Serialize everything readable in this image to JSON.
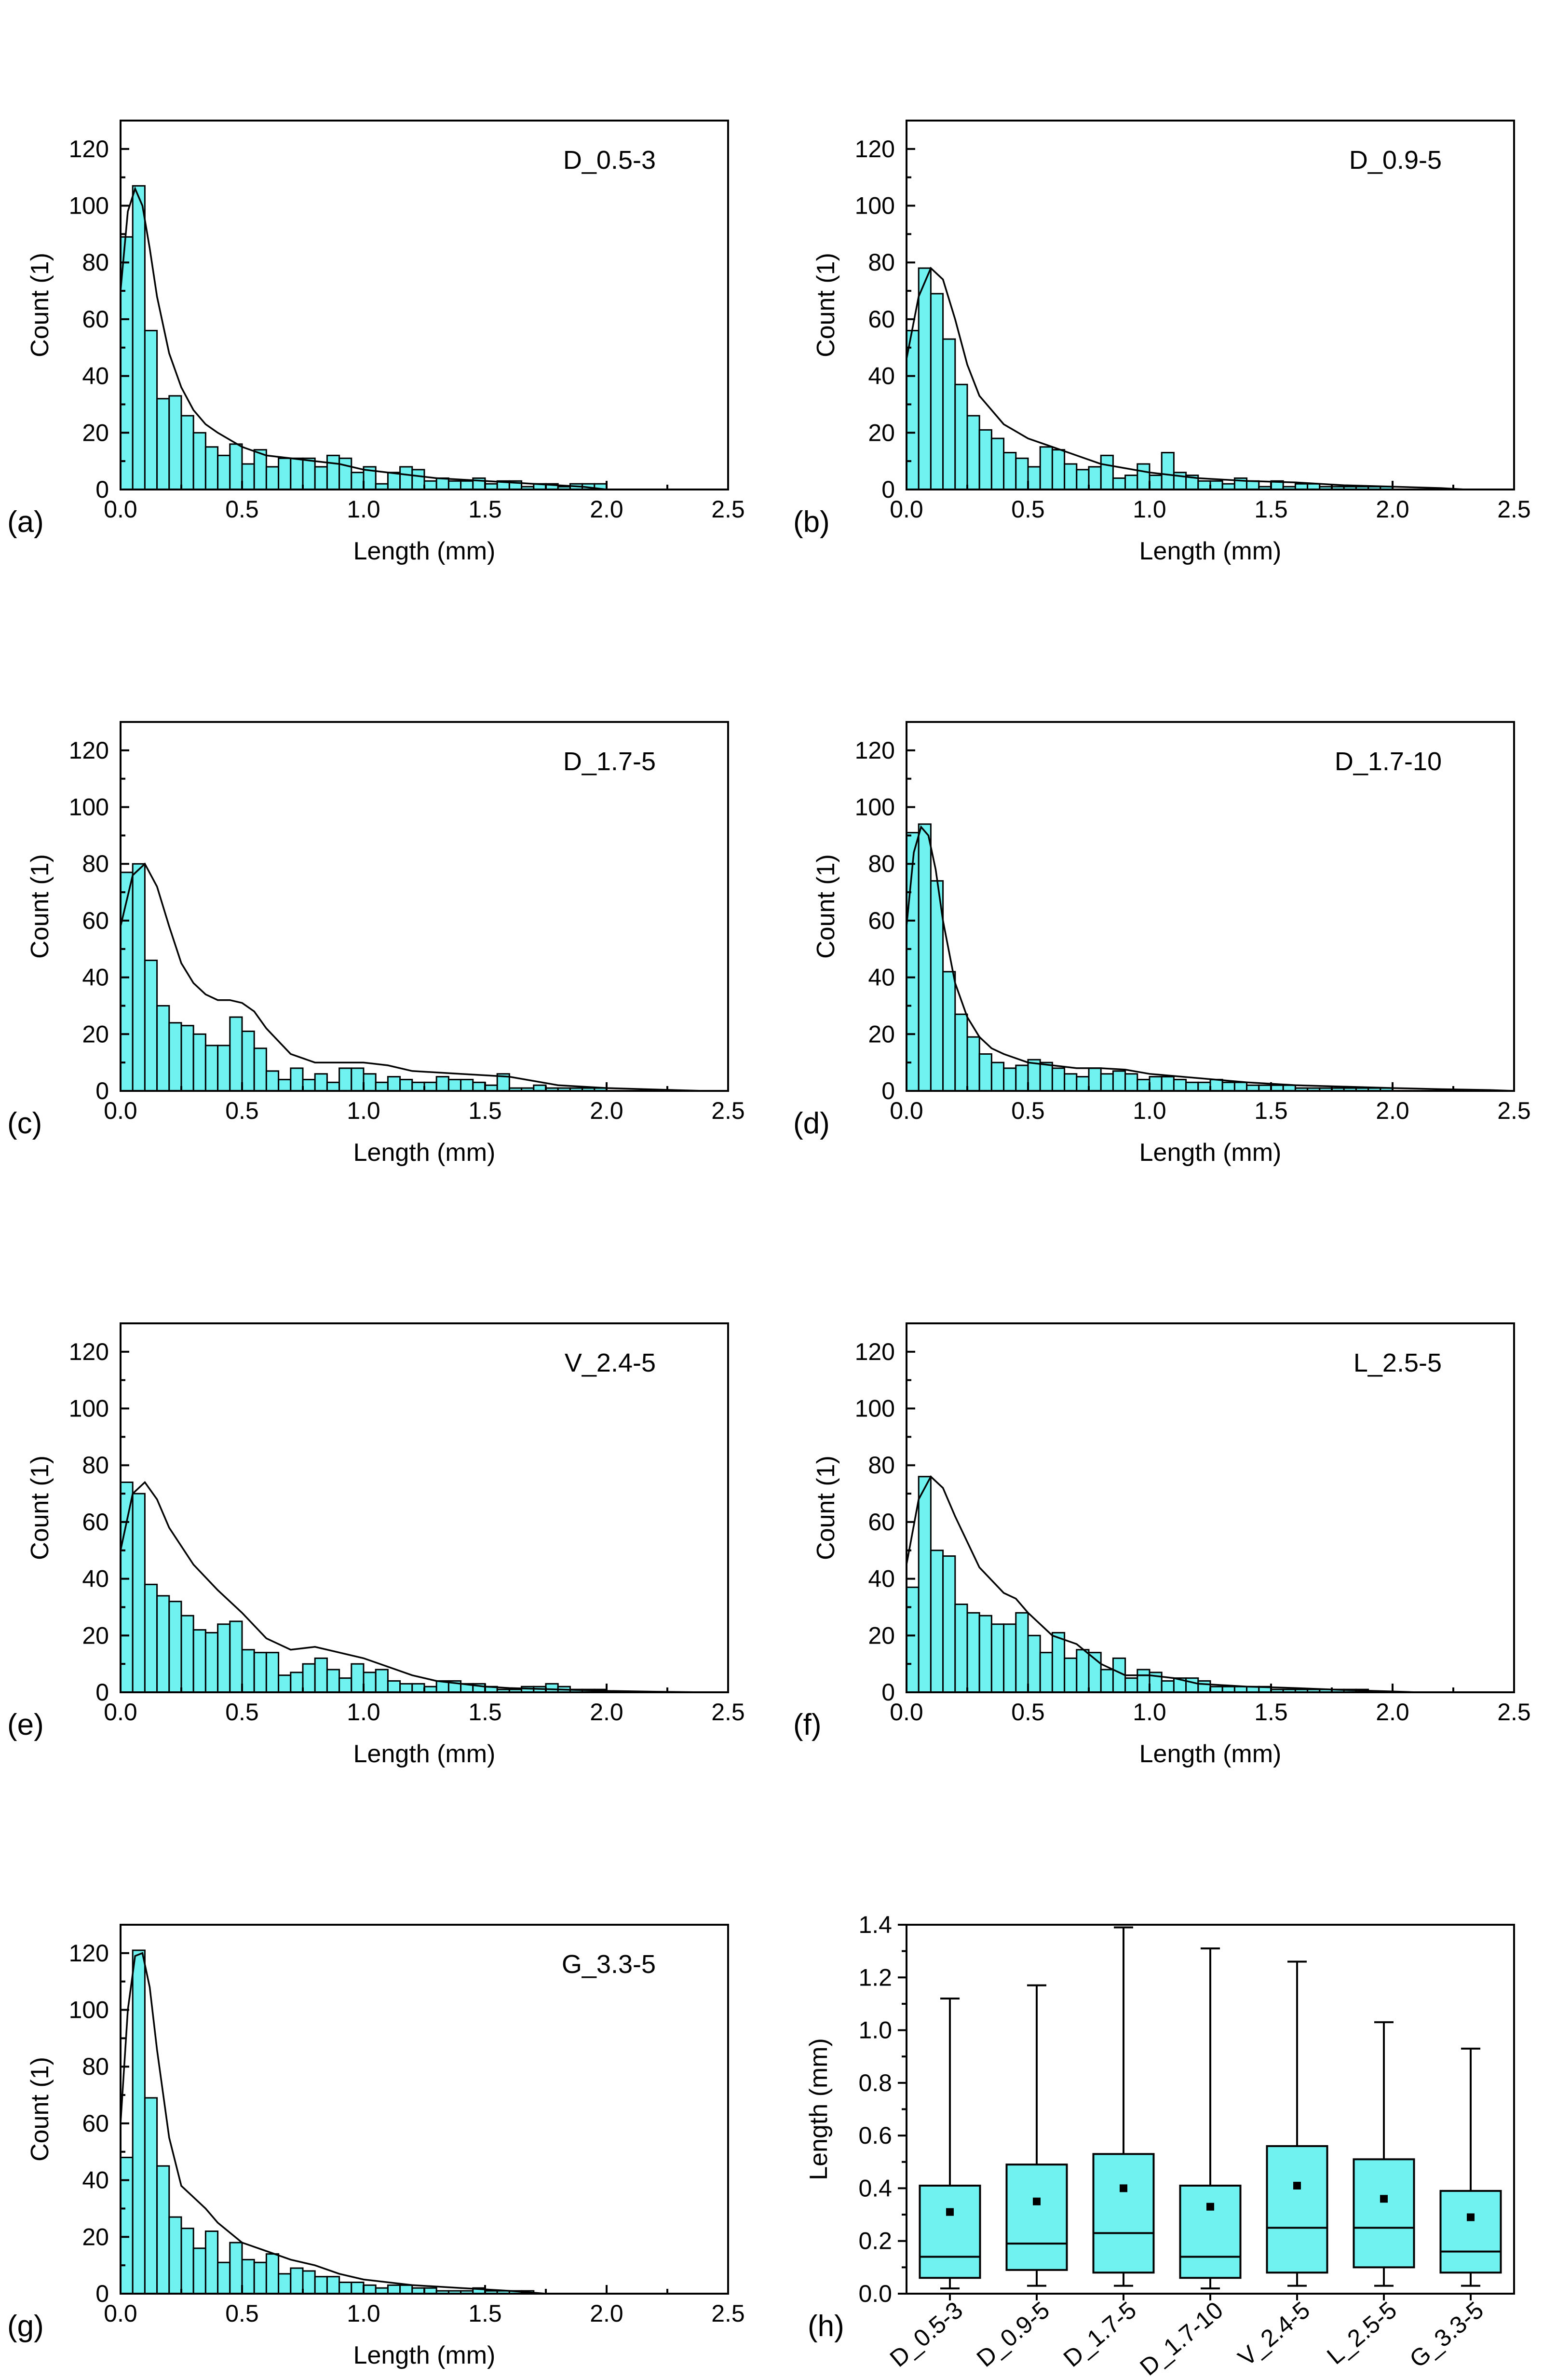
{
  "chart_data": [
    {
      "type": "histogram",
      "panel_label": "(a)",
      "series_label": "D_0.5-3",
      "xlabel": "Length (mm)",
      "ylabel": "Count (1)",
      "xlim": [
        0,
        2.5
      ],
      "ylim": [
        0,
        130
      ],
      "xticks": [
        "0.0",
        "0.5",
        "1.0",
        "1.5",
        "2.0",
        "2.5"
      ],
      "yticks": [
        "0",
        "20",
        "40",
        "60",
        "80",
        "100",
        "120"
      ],
      "bin_width": 0.05,
      "values": [
        89,
        107,
        56,
        32,
        33,
        26,
        20,
        15,
        12,
        16,
        9,
        14,
        8,
        11,
        11,
        11,
        8,
        12,
        11,
        6,
        8,
        2,
        6,
        8,
        7,
        3,
        4,
        3,
        3,
        4,
        2,
        3,
        3,
        1,
        2,
        2,
        1,
        2,
        2,
        2
      ],
      "curve": {
        "x": [
          0,
          0.03,
          0.06,
          0.09,
          0.12,
          0.15,
          0.2,
          0.25,
          0.3,
          0.35,
          0.4,
          0.5,
          0.6,
          0.7,
          0.8,
          0.9,
          1.0,
          1.1,
          1.2,
          1.3,
          1.4,
          1.5,
          1.6,
          1.7,
          1.8,
          1.9,
          1.95,
          2.0
        ],
        "y": [
          70,
          98,
          106,
          100,
          85,
          68,
          48,
          36,
          28,
          23,
          20,
          15,
          12,
          11,
          10,
          9,
          7,
          6,
          5,
          4,
          3.5,
          3,
          2.5,
          2,
          1.5,
          1,
          0.5,
          0
        ]
      }
    },
    {
      "type": "histogram",
      "panel_label": "(b)",
      "series_label": "D_0.9-5",
      "xlabel": "Length (mm)",
      "ylabel": "Count (1)",
      "xlim": [
        0,
        2.5
      ],
      "ylim": [
        0,
        130
      ],
      "xticks": [
        "0.0",
        "0.5",
        "1.0",
        "1.5",
        "2.0",
        "2.5"
      ],
      "yticks": [
        "0",
        "20",
        "40",
        "60",
        "80",
        "100",
        "120"
      ],
      "bin_width": 0.05,
      "values": [
        56,
        78,
        69,
        53,
        37,
        26,
        21,
        18,
        13,
        11,
        8,
        15,
        14,
        9,
        7,
        8,
        12,
        4,
        5,
        9,
        5,
        13,
        6,
        5,
        3,
        3,
        2,
        4,
        3,
        1,
        3,
        1,
        2,
        2,
        1,
        1,
        1,
        1,
        1,
        1
      ],
      "curve": {
        "x": [
          0,
          0.05,
          0.1,
          0.15,
          0.2,
          0.25,
          0.3,
          0.4,
          0.5,
          0.6,
          0.7,
          0.8,
          0.9,
          1.0,
          1.1,
          1.2,
          1.4,
          1.6,
          1.8,
          2.0,
          2.2,
          2.3
        ],
        "y": [
          46,
          68,
          78,
          74,
          60,
          44,
          33,
          23,
          18,
          15,
          12,
          9,
          7.5,
          6,
          5,
          4,
          3,
          2.5,
          1.5,
          1,
          0.5,
          0
        ]
      }
    },
    {
      "type": "histogram",
      "panel_label": "(c)",
      "series_label": "D_1.7-5",
      "xlabel": "Length (mm)",
      "ylabel": "Count (1)",
      "xlim": [
        0,
        2.5
      ],
      "ylim": [
        0,
        130
      ],
      "xticks": [
        "0.0",
        "0.5",
        "1.0",
        "1.5",
        "2.0",
        "2.5"
      ],
      "yticks": [
        "0",
        "20",
        "40",
        "60",
        "80",
        "100",
        "120"
      ],
      "bin_width": 0.05,
      "values": [
        77,
        80,
        46,
        30,
        24,
        23,
        20,
        16,
        16,
        26,
        21,
        15,
        7,
        4,
        8,
        4,
        6,
        3,
        8,
        8,
        6,
        3,
        5,
        4,
        3,
        3,
        5,
        4,
        4,
        3,
        2,
        6,
        1,
        1,
        2,
        1,
        1,
        1,
        1,
        1
      ],
      "curve": {
        "x": [
          0,
          0.05,
          0.1,
          0.15,
          0.2,
          0.25,
          0.3,
          0.35,
          0.4,
          0.45,
          0.5,
          0.55,
          0.6,
          0.7,
          0.8,
          0.9,
          1.0,
          1.1,
          1.2,
          1.4,
          1.6,
          1.8,
          2.0,
          2.2,
          2.4
        ],
        "y": [
          58,
          76,
          80,
          72,
          58,
          45,
          38,
          34,
          32,
          32,
          31,
          28,
          22,
          13,
          10,
          10,
          10,
          9,
          7,
          6,
          5,
          2,
          1,
          0.5,
          0
        ]
      }
    },
    {
      "type": "histogram",
      "panel_label": "(d)",
      "series_label": "D_1.7-10",
      "xlabel": "Length (mm)",
      "ylabel": "Count (1)",
      "xlim": [
        0,
        2.5
      ],
      "ylim": [
        0,
        130
      ],
      "xticks": [
        "0.0",
        "0.5",
        "1.0",
        "1.5",
        "2.0",
        "2.5"
      ],
      "yticks": [
        "0",
        "20",
        "40",
        "60",
        "80",
        "100",
        "120"
      ],
      "bin_width": 0.05,
      "values": [
        91,
        94,
        74,
        42,
        27,
        19,
        13,
        10,
        8,
        9,
        11,
        10,
        8,
        6,
        5,
        8,
        6,
        7,
        6,
        4,
        5,
        5,
        4,
        3,
        3,
        4,
        3,
        3,
        2,
        2,
        2,
        2,
        1,
        1,
        1,
        1,
        1,
        1,
        1,
        1
      ],
      "curve": {
        "x": [
          0,
          0.03,
          0.06,
          0.09,
          0.12,
          0.15,
          0.2,
          0.25,
          0.3,
          0.35,
          0.4,
          0.5,
          0.6,
          0.7,
          0.8,
          0.9,
          1.0,
          1.2,
          1.4,
          1.6,
          1.8,
          2.0,
          2.2,
          2.4,
          2.5
        ],
        "y": [
          58,
          84,
          93,
          90,
          78,
          60,
          38,
          26,
          19,
          15,
          13,
          10,
          9,
          8,
          8,
          7.5,
          6,
          4.5,
          3,
          2,
          1.5,
          1,
          0.6,
          0.3,
          0
        ]
      }
    },
    {
      "type": "histogram",
      "panel_label": "(e)",
      "series_label": "V_2.4-5",
      "xlabel": "Length (mm)",
      "ylabel": "Count (1)",
      "xlim": [
        0,
        2.5
      ],
      "ylim": [
        0,
        130
      ],
      "xticks": [
        "0.0",
        "0.5",
        "1.0",
        "1.5",
        "2.0",
        "2.5"
      ],
      "yticks": [
        "0",
        "20",
        "40",
        "60",
        "80",
        "100",
        "120"
      ],
      "bin_width": 0.05,
      "values": [
        74,
        70,
        38,
        34,
        32,
        27,
        22,
        21,
        24,
        25,
        15,
        14,
        14,
        6,
        7,
        10,
        12,
        8,
        5,
        10,
        7,
        8,
        4,
        3,
        3,
        2,
        4,
        4,
        3,
        3,
        2,
        1,
        1,
        2,
        2,
        3,
        2,
        1,
        1,
        1
      ],
      "curve": {
        "x": [
          0,
          0.05,
          0.1,
          0.15,
          0.2,
          0.3,
          0.4,
          0.5,
          0.6,
          0.7,
          0.8,
          0.9,
          1.0,
          1.1,
          1.2,
          1.3,
          1.4,
          1.5,
          1.6,
          1.8,
          2.0,
          2.2,
          2.4
        ],
        "y": [
          50,
          70,
          74,
          68,
          58,
          45,
          36,
          28,
          19,
          15,
          16,
          14,
          12,
          9,
          6,
          4,
          3,
          2,
          1.5,
          1,
          0.5,
          0.2,
          0
        ]
      }
    },
    {
      "type": "histogram",
      "panel_label": "(f)",
      "series_label": "L_2.5-5",
      "xlabel": "Length (mm)",
      "ylabel": "Count (1)",
      "xlim": [
        0,
        2.5
      ],
      "ylim": [
        0,
        130
      ],
      "xticks": [
        "0.0",
        "0.5",
        "1.0",
        "1.5",
        "2.0",
        "2.5"
      ],
      "yticks": [
        "0",
        "20",
        "40",
        "60",
        "80",
        "100",
        "120"
      ],
      "bin_width": 0.05,
      "values": [
        37,
        76,
        50,
        48,
        31,
        28,
        27,
        24,
        24,
        28,
        20,
        14,
        21,
        12,
        15,
        14,
        8,
        12,
        5,
        8,
        7,
        4,
        5,
        5,
        4,
        2,
        2,
        2,
        2,
        2,
        1,
        1,
        1,
        1,
        1,
        1,
        1,
        1,
        0,
        0
      ],
      "curve": {
        "x": [
          0,
          0.05,
          0.1,
          0.15,
          0.2,
          0.3,
          0.4,
          0.45,
          0.5,
          0.6,
          0.7,
          0.8,
          0.9,
          1.0,
          1.1,
          1.2,
          1.4,
          1.6,
          1.8,
          2.0,
          2.1
        ],
        "y": [
          45,
          68,
          76,
          72,
          62,
          44,
          35,
          33,
          28,
          20,
          17,
          10,
          6,
          6,
          5,
          3,
          2,
          1.5,
          0.8,
          0.3,
          0
        ]
      }
    },
    {
      "type": "histogram",
      "panel_label": "(g)",
      "series_label": "G_3.3-5",
      "xlabel": "Length (mm)",
      "ylabel": "Count (1)",
      "xlim": [
        0,
        2.5
      ],
      "ylim": [
        0,
        130
      ],
      "xticks": [
        "0.0",
        "0.5",
        "1.0",
        "1.5",
        "2.0",
        "2.5"
      ],
      "yticks": [
        "0",
        "20",
        "40",
        "60",
        "80",
        "100",
        "120"
      ],
      "bin_width": 0.05,
      "values": [
        48,
        121,
        69,
        45,
        27,
        23,
        16,
        22,
        11,
        18,
        12,
        11,
        14,
        7,
        9,
        8,
        6,
        6,
        4,
        4,
        3,
        2,
        3,
        3,
        2,
        2,
        1,
        1,
        1,
        2,
        1,
        1,
        1,
        1,
        0,
        0,
        0,
        0,
        0,
        0
      ],
      "curve": {
        "x": [
          0,
          0.03,
          0.06,
          0.09,
          0.12,
          0.15,
          0.2,
          0.25,
          0.3,
          0.35,
          0.4,
          0.5,
          0.6,
          0.7,
          0.8,
          0.9,
          1.0,
          1.2,
          1.4,
          1.6,
          1.75
        ],
        "y": [
          60,
          100,
          119,
          120,
          108,
          86,
          55,
          38,
          34,
          30,
          25,
          18,
          15,
          12,
          10,
          7,
          5,
          3,
          2,
          1,
          0
        ]
      }
    },
    {
      "type": "box",
      "panel_label": "(h)",
      "ylabel": "Length (mm)",
      "ylim": [
        0,
        1.4
      ],
      "yticks": [
        "0.0",
        "0.2",
        "0.4",
        "0.6",
        "0.8",
        "1.0",
        "1.2",
        "1.4"
      ],
      "categories": [
        "D_0.5-3",
        "D_0.9-5",
        "D_1.7-5",
        "D_1.7-10",
        "V_2.4-5",
        "L_2.5-5",
        "G_3.3-5"
      ],
      "boxes": [
        {
          "min": 0.02,
          "q1": 0.06,
          "median": 0.14,
          "mean": 0.31,
          "q3": 0.41,
          "max": 1.12
        },
        {
          "min": 0.03,
          "q1": 0.09,
          "median": 0.19,
          "mean": 0.35,
          "q3": 0.49,
          "max": 1.17
        },
        {
          "min": 0.03,
          "q1": 0.08,
          "median": 0.23,
          "mean": 0.4,
          "q3": 0.53,
          "max": 1.39
        },
        {
          "min": 0.02,
          "q1": 0.06,
          "median": 0.14,
          "mean": 0.33,
          "q3": 0.41,
          "max": 1.31
        },
        {
          "min": 0.03,
          "q1": 0.08,
          "median": 0.25,
          "mean": 0.41,
          "q3": 0.56,
          "max": 1.26
        },
        {
          "min": 0.03,
          "q1": 0.1,
          "median": 0.25,
          "mean": 0.36,
          "q3": 0.51,
          "max": 1.03
        },
        {
          "min": 0.03,
          "q1": 0.08,
          "median": 0.16,
          "mean": 0.29,
          "q3": 0.39,
          "max": 0.93
        }
      ]
    }
  ]
}
